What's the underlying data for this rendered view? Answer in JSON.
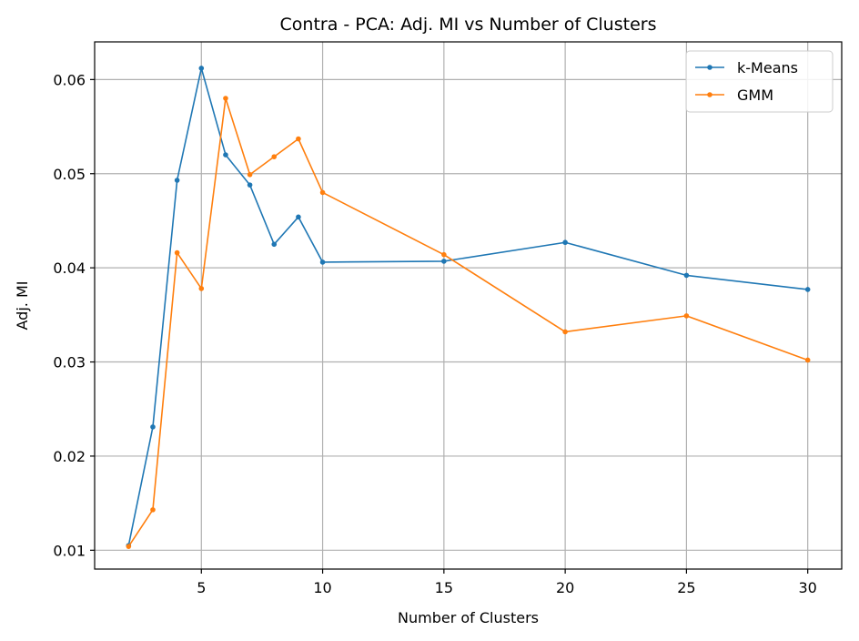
{
  "chart_data": {
    "type": "line",
    "title": "Contra - PCA: Adj. MI vs Number of Clusters",
    "xlabel": "Number of Clusters",
    "ylabel": "Adj. MI",
    "xlim": [
      0.6,
      31.4
    ],
    "ylim": [
      0.008,
      0.064
    ],
    "xticks": [
      5,
      10,
      15,
      20,
      25,
      30
    ],
    "yticks": [
      0.01,
      0.02,
      0.03,
      0.04,
      0.05,
      0.06
    ],
    "ytick_labels": [
      "0.01",
      "0.02",
      "0.03",
      "0.04",
      "0.05",
      "0.06"
    ],
    "grid": true,
    "legend_position": "top-right",
    "x": [
      2,
      3,
      4,
      5,
      6,
      7,
      8,
      9,
      10,
      15,
      20,
      25,
      30
    ],
    "series": [
      {
        "name": "k-Means",
        "color": "#1f77b4",
        "values": [
          0.0105,
          0.0231,
          0.0493,
          0.0612,
          0.052,
          0.0488,
          0.0425,
          0.0454,
          0.0406,
          0.0407,
          0.0427,
          0.0392,
          0.0377
        ]
      },
      {
        "name": "GMM",
        "color": "#ff7f0e",
        "values": [
          0.0104,
          0.0143,
          0.0416,
          0.0378,
          0.058,
          0.0499,
          0.0518,
          0.0537,
          0.048,
          0.0414,
          0.0332,
          0.0349,
          0.0302
        ]
      }
    ]
  }
}
